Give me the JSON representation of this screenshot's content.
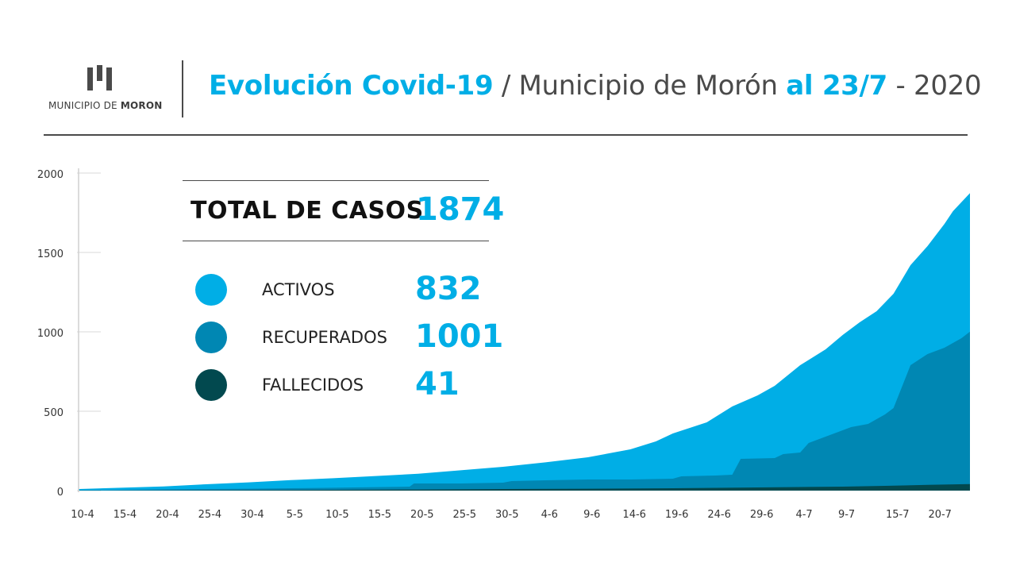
{
  "header": {
    "logo_prefix": "MUNICIPIO DE",
    "logo_name": "MORON",
    "title_part1": "Evolución Covid-19",
    "title_part2": " / Municipio de Morón ",
    "title_part3": "al 23/7",
    "title_part4": " - 2020"
  },
  "summary": {
    "total_label": "TOTAL DE CASOS",
    "total_value": "1874",
    "items": [
      {
        "label": "ACTIVOS",
        "value": "832",
        "color": "#00aee6"
      },
      {
        "label": "RECUPERADOS",
        "value": "1001",
        "color": "#0087b3"
      },
      {
        "label": "FALLECIDOS",
        "value": "41",
        "color": "#02494f"
      }
    ]
  },
  "colors": {
    "total_area": "#00aee6",
    "recuperados_area": "#0087b3",
    "fallecidos_area": "#02494f",
    "accent": "#00aee6",
    "text_dark": "#4a4a4a"
  },
  "chart_data": {
    "type": "area",
    "title": "Evolución Covid-19 / Municipio de Morón al 23/7 - 2020",
    "xlabel": "",
    "ylabel": "",
    "ylim": [
      0,
      2000
    ],
    "yticks": [
      0,
      500,
      1000,
      1500,
      2000
    ],
    "x_day_range": [
      0,
      105
    ],
    "xticks": [
      {
        "day": 0,
        "label": "10-4"
      },
      {
        "day": 5,
        "label": "15-4"
      },
      {
        "day": 10,
        "label": "20-4"
      },
      {
        "day": 15,
        "label": "25-4"
      },
      {
        "day": 20,
        "label": "30-4"
      },
      {
        "day": 25,
        "label": "5-5"
      },
      {
        "day": 30,
        "label": "10-5"
      },
      {
        "day": 35,
        "label": "15-5"
      },
      {
        "day": 40,
        "label": "20-5"
      },
      {
        "day": 45,
        "label": "25-5"
      },
      {
        "day": 50,
        "label": "30-5"
      },
      {
        "day": 55,
        "label": "4-6"
      },
      {
        "day": 60,
        "label": "9-6"
      },
      {
        "day": 65,
        "label": "14-6"
      },
      {
        "day": 70,
        "label": "19-6"
      },
      {
        "day": 75,
        "label": "24-6"
      },
      {
        "day": 80,
        "label": "29-6"
      },
      {
        "day": 85,
        "label": "4-7"
      },
      {
        "day": 90,
        "label": "9-7"
      },
      {
        "day": 96,
        "label": "15-7"
      },
      {
        "day": 101,
        "label": "20-7"
      }
    ],
    "series": [
      {
        "name": "Total de casos",
        "color": "#00aee6",
        "points": [
          [
            0,
            10
          ],
          [
            5,
            18
          ],
          [
            10,
            26
          ],
          [
            15,
            40
          ],
          [
            20,
            52
          ],
          [
            25,
            66
          ],
          [
            30,
            78
          ],
          [
            35,
            92
          ],
          [
            40,
            106
          ],
          [
            45,
            128
          ],
          [
            50,
            150
          ],
          [
            55,
            178
          ],
          [
            60,
            210
          ],
          [
            65,
            260
          ],
          [
            68,
            310
          ],
          [
            70,
            360
          ],
          [
            74,
            430
          ],
          [
            77,
            530
          ],
          [
            80,
            600
          ],
          [
            82,
            660
          ],
          [
            85,
            790
          ],
          [
            88,
            890
          ],
          [
            90,
            980
          ],
          [
            92,
            1060
          ],
          [
            94,
            1130
          ],
          [
            96,
            1240
          ],
          [
            98,
            1420
          ],
          [
            100,
            1540
          ],
          [
            102,
            1680
          ],
          [
            103,
            1760
          ],
          [
            105,
            1874
          ]
        ]
      },
      {
        "name": "Recuperados",
        "color": "#0087b3",
        "points": [
          [
            0,
            3
          ],
          [
            5,
            5
          ],
          [
            10,
            8
          ],
          [
            15,
            10
          ],
          [
            20,
            12
          ],
          [
            25,
            15
          ],
          [
            30,
            18
          ],
          [
            35,
            22
          ],
          [
            39,
            25
          ],
          [
            39.5,
            45
          ],
          [
            45,
            45
          ],
          [
            50,
            50
          ],
          [
            51,
            60
          ],
          [
            55,
            65
          ],
          [
            60,
            70
          ],
          [
            65,
            70
          ],
          [
            70,
            75
          ],
          [
            71,
            90
          ],
          [
            75,
            95
          ],
          [
            77,
            100
          ],
          [
            78,
            200
          ],
          [
            82,
            205
          ],
          [
            83,
            230
          ],
          [
            85,
            240
          ],
          [
            86,
            300
          ],
          [
            88,
            340
          ],
          [
            90,
            380
          ],
          [
            91,
            400
          ],
          [
            93,
            420
          ],
          [
            95,
            480
          ],
          [
            96,
            520
          ],
          [
            98,
            790
          ],
          [
            100,
            860
          ],
          [
            102,
            900
          ],
          [
            104,
            960
          ],
          [
            105,
            1001
          ]
        ]
      },
      {
        "name": "Fallecidos",
        "color": "#02494f",
        "points": [
          [
            0,
            0
          ],
          [
            10,
            1
          ],
          [
            20,
            3
          ],
          [
            30,
            5
          ],
          [
            40,
            7
          ],
          [
            50,
            10
          ],
          [
            60,
            12
          ],
          [
            70,
            15
          ],
          [
            80,
            20
          ],
          [
            90,
            25
          ],
          [
            95,
            30
          ],
          [
            100,
            36
          ],
          [
            105,
            41
          ]
        ]
      }
    ]
  }
}
